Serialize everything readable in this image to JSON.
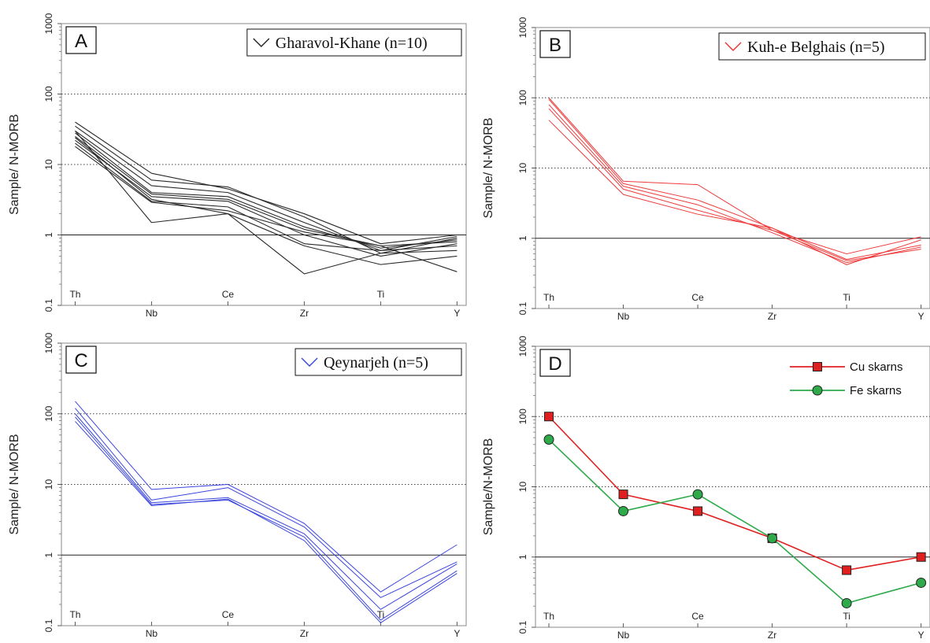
{
  "chart_data": [
    {
      "type": "line",
      "panel_label": "A",
      "ylabel": "Sample/ N-MORB",
      "yscale": "log",
      "ylim": [
        0.1,
        1000
      ],
      "ytick_labels": [
        "0.1",
        "1",
        "10",
        "100",
        "1000"
      ],
      "categories": [
        "Th",
        "Nb",
        "Ce",
        "Zr",
        "Ti",
        "Y"
      ],
      "reference_lines": {
        "dotted": [
          10,
          100
        ],
        "solid": [
          1
        ]
      },
      "legend": {
        "label": "Gharavol-Khane (n=10)",
        "position": "top-right",
        "color": "#222222"
      },
      "series": [
        {
          "values": [
            40,
            7.5,
            4.5,
            2.0,
            0.75,
            1.0
          ]
        },
        {
          "values": [
            35,
            6.0,
            4.8,
            1.8,
            0.55,
            0.9
          ]
        },
        {
          "values": [
            30,
            5.0,
            4.0,
            1.5,
            0.6,
            0.95
          ]
        },
        {
          "values": [
            28,
            4.0,
            3.5,
            1.3,
            0.65,
            0.85
          ]
        },
        {
          "values": [
            25,
            3.8,
            3.2,
            1.2,
            0.7,
            0.8
          ]
        },
        {
          "values": [
            22,
            3.5,
            3.0,
            1.0,
            0.5,
            0.75
          ]
        },
        {
          "values": [
            20,
            3.0,
            2.5,
            0.75,
            0.6,
            0.7
          ]
        },
        {
          "values": [
            30,
            1.5,
            2.0,
            0.28,
            0.55,
            0.6
          ]
        },
        {
          "values": [
            24,
            3.2,
            2.0,
            0.7,
            0.38,
            0.5
          ]
        },
        {
          "values": [
            18,
            2.9,
            2.2,
            1.1,
            0.7,
            0.3
          ]
        }
      ]
    },
    {
      "type": "line",
      "panel_label": "B",
      "ylabel": "Sample/ N-MORB",
      "yscale": "log",
      "ylim": [
        0.1,
        1000
      ],
      "ytick_labels": [
        "0.1",
        "1",
        "10",
        "100",
        "1000"
      ],
      "categories": [
        "Th",
        "Nb",
        "Ce",
        "Zr",
        "Ti",
        "Y"
      ],
      "reference_lines": {
        "dotted": [
          10,
          100
        ],
        "solid": [
          1
        ]
      },
      "legend": {
        "label": "Kuh-e Belghais (n=5)",
        "position": "top-right",
        "color": "#e83030"
      },
      "series": [
        {
          "values": [
            100,
            6.5,
            5.8,
            1.3,
            0.6,
            1.05
          ]
        },
        {
          "values": [
            95,
            6.0,
            3.5,
            1.4,
            0.5,
            0.8
          ]
        },
        {
          "values": [
            80,
            5.5,
            3.0,
            1.2,
            0.45,
            0.75
          ]
        },
        {
          "values": [
            70,
            5.0,
            2.5,
            1.3,
            0.48,
            0.7
          ]
        },
        {
          "values": [
            48,
            4.2,
            2.2,
            1.4,
            0.42,
            0.95
          ]
        }
      ]
    },
    {
      "type": "line",
      "panel_label": "C",
      "ylabel": "Sample/ N-MORB",
      "yscale": "log",
      "ylim": [
        0.1,
        1000
      ],
      "ytick_labels": [
        "0.1",
        "1",
        "10",
        "100",
        "1000"
      ],
      "categories": [
        "Th",
        "Nb",
        "Ce",
        "Zr",
        "Ti",
        "Y"
      ],
      "reference_lines": {
        "dotted": [
          10,
          100
        ],
        "solid": [
          1
        ]
      },
      "legend": {
        "label": "Qeynarjeh (n=5)",
        "position": "top-right",
        "color": "#3344dd"
      },
      "series": [
        {
          "values": [
            150,
            8.5,
            10,
            2.8,
            0.3,
            1.4
          ]
        },
        {
          "values": [
            120,
            6.0,
            9.0,
            2.5,
            0.25,
            0.8
          ]
        },
        {
          "values": [
            100,
            5.5,
            6.5,
            2.0,
            0.17,
            0.75
          ]
        },
        {
          "values": [
            90,
            5.2,
            6.0,
            1.8,
            0.12,
            0.6
          ]
        },
        {
          "values": [
            78,
            5.0,
            6.2,
            1.6,
            0.11,
            0.55
          ]
        }
      ]
    },
    {
      "type": "line",
      "panel_label": "D",
      "ylabel": "Sample/N-MORB",
      "yscale": "log",
      "ylim": [
        0.1,
        1000
      ],
      "ytick_labels": [
        "0.1",
        "1",
        "10",
        "100",
        "1000"
      ],
      "categories": [
        "Th",
        "Nb",
        "Ce",
        "Zr",
        "Ti",
        "Y"
      ],
      "reference_lines": {
        "dotted": [
          10,
          100
        ],
        "solid": [
          1
        ]
      },
      "legend_position": "top-right",
      "series": [
        {
          "name": "Cu skarns",
          "color": "#e02020",
          "marker": "square",
          "values": [
            100,
            7.8,
            4.5,
            1.85,
            0.65,
            1.0
          ]
        },
        {
          "name": "Fe skarns",
          "color": "#2eaa4a",
          "marker": "circle",
          "values": [
            47,
            4.5,
            7.8,
            1.85,
            0.22,
            0.43
          ]
        }
      ]
    }
  ]
}
